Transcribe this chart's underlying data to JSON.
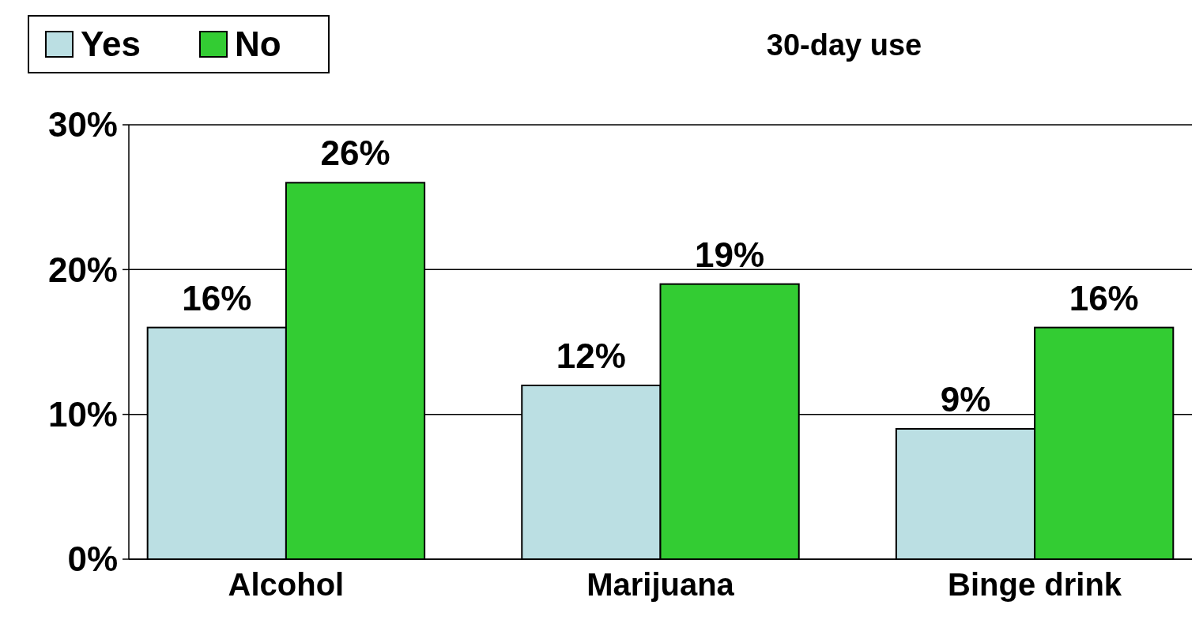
{
  "chart_data": {
    "type": "bar",
    "title": "30-day use",
    "categories": [
      "Alcohol",
      "Marijuana",
      "Binge drink"
    ],
    "series": [
      {
        "name": "Yes",
        "color": "#bbdfe3",
        "values": [
          16,
          12,
          9
        ],
        "value_labels": [
          "16%",
          "12%",
          "9%"
        ]
      },
      {
        "name": "No",
        "color": "#33cc33",
        "values": [
          26,
          19,
          16
        ],
        "value_labels": [
          "26%",
          "19%",
          "16%"
        ]
      }
    ],
    "ylim": [
      0,
      30
    ],
    "yticks": [
      {
        "value": 0,
        "label": "0%"
      },
      {
        "value": 10,
        "label": "10%"
      },
      {
        "value": 20,
        "label": "20%"
      },
      {
        "value": 30,
        "label": "30%"
      }
    ],
    "grid": "y",
    "legend": "top left"
  }
}
